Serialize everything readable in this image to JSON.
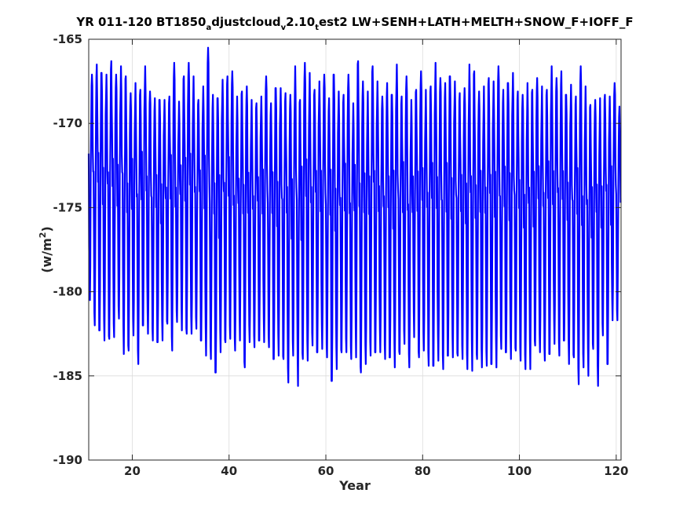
{
  "chart_data": {
    "type": "line",
    "title": {
      "parts": [
        {
          "text": "YR 011-120 BT1850",
          "sub": false
        },
        {
          "text": "a",
          "sub": true
        },
        {
          "text": "djustcloud",
          "sub": false
        },
        {
          "text": "v",
          "sub": true
        },
        {
          "text": "2.10",
          "sub": false
        },
        {
          "text": "t",
          "sub": true
        },
        {
          "text": "est2 LW+SENH+LATH+MELTH+SNOW_F+IOFF_F",
          "sub": false
        }
      ]
    },
    "xlabel": "Year",
    "ylabel": {
      "main": "(w/m",
      "sup": "2",
      "close": ")"
    },
    "xlim": [
      11,
      121
    ],
    "ylim": [
      -190,
      -165
    ],
    "xticks": [
      20,
      40,
      60,
      80,
      100,
      120
    ],
    "xtick_labels": [
      "20",
      "40",
      "60",
      "80",
      "100",
      "120"
    ],
    "yticks": [
      -190,
      -185,
      -180,
      -175,
      -170,
      -165
    ],
    "ytick_labels": [
      "-190",
      "-185",
      "-180",
      "-175",
      "-170",
      "-165"
    ],
    "grid": true,
    "series_color": "#0000ff",
    "series": [
      {
        "name": "",
        "description": "Monthly values from year 11 to 120; strong seasonal cycle oscillating between roughly -166 and -185 W/m2",
        "annual_max": [
          -167.1,
          -166.5,
          -167.0,
          -167.1,
          -166.3,
          -167.1,
          -166.6,
          -167.2,
          -168.2,
          -167.6,
          -168.0,
          -166.6,
          -168.1,
          -168.5,
          -168.6,
          -168.6,
          -168.4,
          -166.4,
          -168.7,
          -167.2,
          -166.4,
          -167.2,
          -168.6,
          -167.8,
          -165.5,
          -168.3,
          -168.5,
          -167.4,
          -167.2,
          -166.9,
          -168.4,
          -168.1,
          -167.8,
          -168.6,
          -168.8,
          -168.4,
          -167.2,
          -168.8,
          -167.9,
          -167.9,
          -168.2,
          -168.3,
          -166.6,
          -168.6,
          -166.4,
          -167.0,
          -168.0,
          -167.5,
          -167.1,
          -168.5,
          -167.1,
          -168.1,
          -168.3,
          -167.1,
          -168.8,
          -166.3,
          -167.5,
          -168.1,
          -166.6,
          -167.5,
          -168.4,
          -167.6,
          -168.3,
          -166.5,
          -168.4,
          -167.2,
          -168.6,
          -168.0,
          -166.9,
          -168.0,
          -167.8,
          -166.4,
          -167.3,
          -167.6,
          -167.2,
          -167.5,
          -168.2,
          -167.9,
          -166.5,
          -166.9,
          -168.1,
          -167.8,
          -167.3,
          -167.5,
          -166.6,
          -168.0,
          -167.6,
          -167.0,
          -168.1,
          -168.3,
          -167.6,
          -168.0,
          -167.3,
          -167.8,
          -168.0,
          -166.6,
          -167.3,
          -166.9,
          -168.3,
          -167.7,
          -168.4,
          -166.6,
          -167.8,
          -168.9,
          -168.6,
          -168.5,
          -168.3,
          -168.4,
          -167.6,
          -169.0
        ],
        "annual_min": [
          -180.5,
          -182.0,
          -182.3,
          -182.9,
          -182.8,
          -182.7,
          -181.6,
          -183.7,
          -183.5,
          -182.6,
          -184.3,
          -182.0,
          -182.5,
          -182.9,
          -183.0,
          -182.9,
          -181.9,
          -183.5,
          -181.8,
          -182.3,
          -182.5,
          -182.5,
          -182.2,
          -182.9,
          -183.8,
          -184.0,
          -184.8,
          -183.6,
          -183.0,
          -182.8,
          -183.5,
          -182.9,
          -184.5,
          -183.0,
          -183.3,
          -182.9,
          -183.0,
          -183.3,
          -184.0,
          -183.8,
          -184.0,
          -185.4,
          -183.8,
          -185.6,
          -184.0,
          -184.1,
          -183.2,
          -183.6,
          -183.4,
          -183.9,
          -185.3,
          -184.6,
          -183.6,
          -183.6,
          -184.0,
          -183.9,
          -184.8,
          -184.3,
          -183.8,
          -183.6,
          -183.6,
          -184.0,
          -183.9,
          -184.5,
          -183.7,
          -183.1,
          -184.5,
          -182.7,
          -183.9,
          -183.5,
          -184.4,
          -184.4,
          -184.1,
          -184.6,
          -183.8,
          -183.9,
          -183.8,
          -184.0,
          -184.6,
          -184.7,
          -184.0,
          -184.5,
          -184.4,
          -184.3,
          -184.5,
          -183.4,
          -183.6,
          -184.0,
          -183.5,
          -184.1,
          -184.6,
          -184.6,
          -183.2,
          -183.6,
          -184.1,
          -183.7,
          -183.1,
          -183.8,
          -182.9,
          -184.3,
          -183.9,
          -185.5,
          -184.5,
          -185.0,
          -183.4,
          -185.6,
          -182.6,
          -184.3,
          -181.7,
          -181.7
        ]
      }
    ]
  }
}
